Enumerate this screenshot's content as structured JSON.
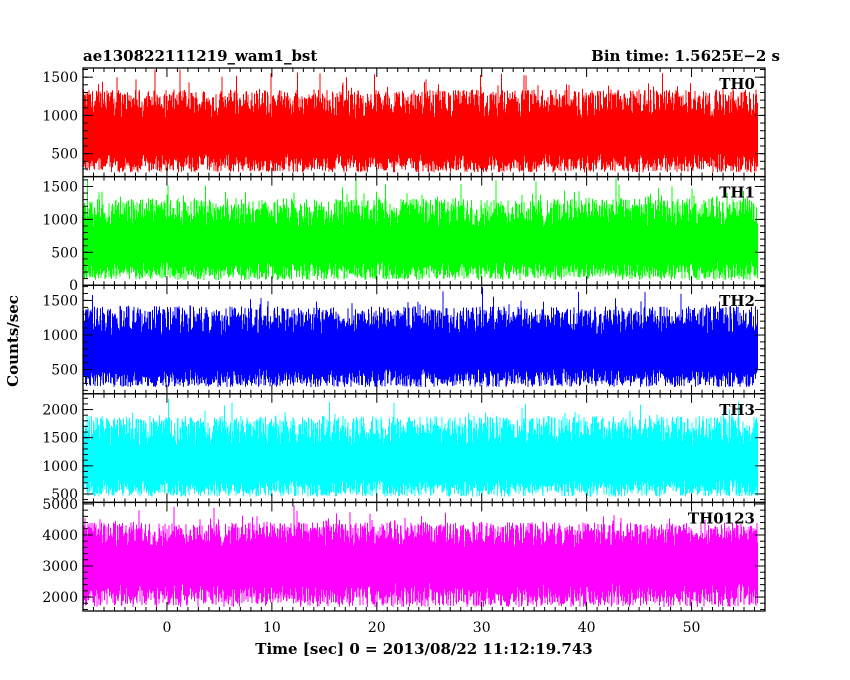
{
  "chart_data": {
    "type": "line",
    "title": "ae130822111219_wam1_bst",
    "subtitle": "Bin time: 1.5625E−2 s",
    "xlabel": "Time [sec] 0 = 2013/08/22 11:12:19.743",
    "ylabel": "Counts/sec",
    "xlim": [
      -8,
      57
    ],
    "x_ticks": [
      0,
      10,
      20,
      30,
      40,
      50
    ],
    "data_x_range": [
      -8,
      56.3
    ],
    "bin_time_s": 0.015625,
    "panels": [
      {
        "name": "TH0",
        "color": "#ff0000",
        "ylim": [
          200,
          1620
        ],
        "y_ticks": [
          500,
          1000,
          1500
        ],
        "level": 730,
        "low": 230,
        "high": 1600
      },
      {
        "name": "TH1",
        "color": "#00ff00",
        "ylim": [
          0,
          1650
        ],
        "y_ticks": [
          0,
          500,
          1000,
          1500
        ],
        "level": 620,
        "low": 50,
        "high": 1620
      },
      {
        "name": "TH2",
        "color": "#0000ff",
        "ylim": [
          150,
          1720
        ],
        "y_ticks": [
          500,
          1000,
          1500
        ],
        "level": 760,
        "low": 220,
        "high": 1700
      },
      {
        "name": "TH3",
        "color": "#00ffff",
        "ylim": [
          350,
          2280
        ],
        "y_ticks": [
          500,
          1000,
          1500,
          2000
        ],
        "level": 1050,
        "low": 420,
        "high": 2250
      },
      {
        "name": "TH0123",
        "color": "#ff00ff",
        "ylim": [
          1550,
          5050
        ],
        "y_ticks": [
          2000,
          3000,
          4000,
          5000
        ],
        "level": 3150,
        "low": 1600,
        "high": 4950
      }
    ]
  }
}
